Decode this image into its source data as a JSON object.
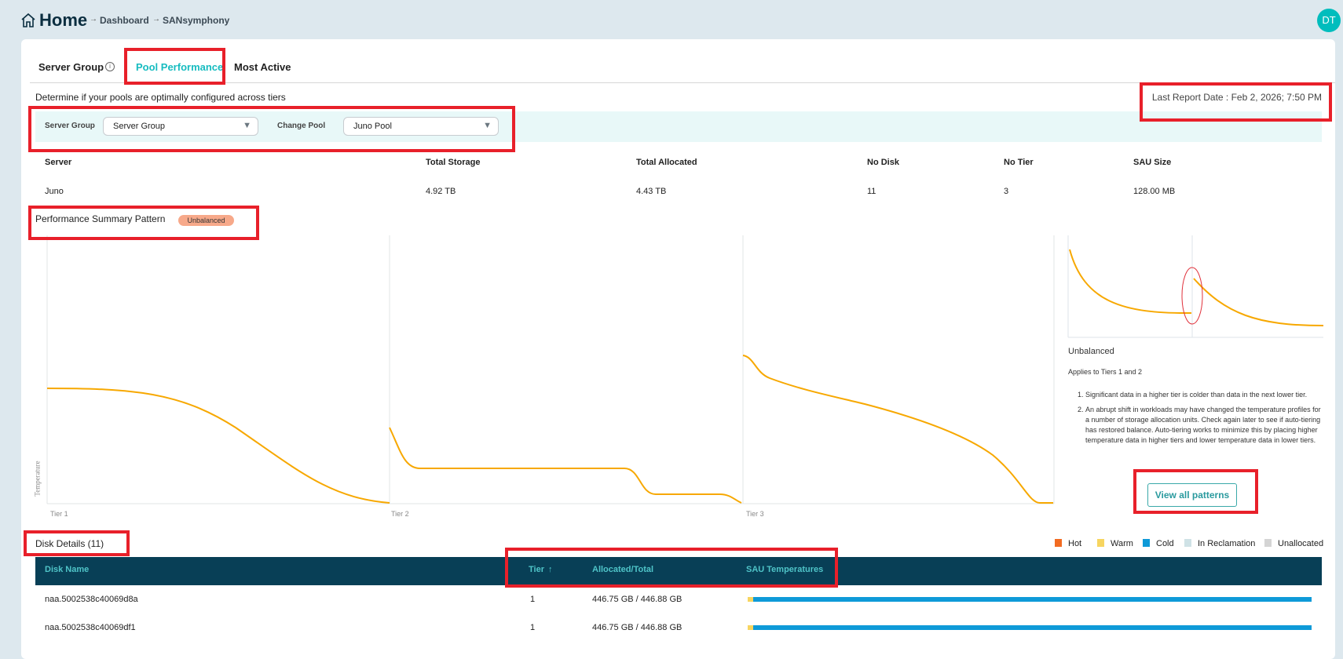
{
  "header": {
    "title": "Home",
    "breadcrumbs": [
      "Dashboard",
      "SANsymphony"
    ],
    "avatar": "DT"
  },
  "tabs": [
    {
      "label": "Server Group",
      "active": false
    },
    {
      "label": "Pool Performance",
      "active": true
    },
    {
      "label": "Most Active",
      "active": false
    }
  ],
  "description": "Determine if your pools are optimally configured across tiers",
  "last_report": "Last Report Date : Feb 2, 2026; 7:50 PM",
  "filters": {
    "server_group_label": "Server Group",
    "server_group_value": "Server Group",
    "pool_label": "Change Pool",
    "pool_value": "Juno Pool"
  },
  "server_table": {
    "headers": [
      "Server",
      "Total Storage",
      "Total Allocated",
      "No Disk",
      "No Tier",
      "SAU Size"
    ],
    "row": [
      "Juno",
      "4.92 TB",
      "4.43 TB",
      "11",
      "3",
      "128.00 MB"
    ]
  },
  "performance": {
    "title": "Performance Summary Pattern",
    "badge": "Unbalanced",
    "y_label": "Temperature",
    "tiers": [
      "Tier 1",
      "Tier 2",
      "Tier 3"
    ]
  },
  "pattern_panel": {
    "title": "Unbalanced",
    "applies": "Applies to Tiers 1 and 2",
    "items": [
      "Significant data in a higher tier is colder than data in the next lower tier.",
      "An abrupt shift in workloads may have changed the temperature profiles for a number of storage allocation units. Check again later to see if auto-tiering has restored balance. Auto-tiering works to minimize this by placing higher temperature data in higher tiers and lower temperature data in lower tiers."
    ],
    "button": "View all patterns"
  },
  "disk_details": {
    "title": "Disk Details (11)",
    "legend": [
      {
        "label": "Hot",
        "color": "#f26b21"
      },
      {
        "label": "Warm",
        "color": "#f7d560"
      },
      {
        "label": "Cold",
        "color": "#0e9ad8"
      },
      {
        "label": "In Reclamation",
        "color": "#cfe2e6"
      },
      {
        "label": "Unallocated",
        "color": "#d4d4d4"
      }
    ],
    "headers": [
      "Disk Name",
      "Tier",
      "Allocated/Total",
      "SAU Temperatures"
    ],
    "rows": [
      {
        "name": "naa.5002538c40069d8a",
        "tier": "1",
        "alloc": "446.75 GB / 446.88 GB",
        "warm_pct": 1,
        "cold_pct": 99
      },
      {
        "name": "naa.5002538c40069df1",
        "tier": "1",
        "alloc": "446.75 GB / 446.88 GB",
        "warm_pct": 1,
        "cold_pct": 99
      }
    ]
  },
  "colors": {
    "accent": "#00b8bd",
    "curve": "#f7a800",
    "table_header": "#083f56",
    "badge": "#f7a98a"
  }
}
